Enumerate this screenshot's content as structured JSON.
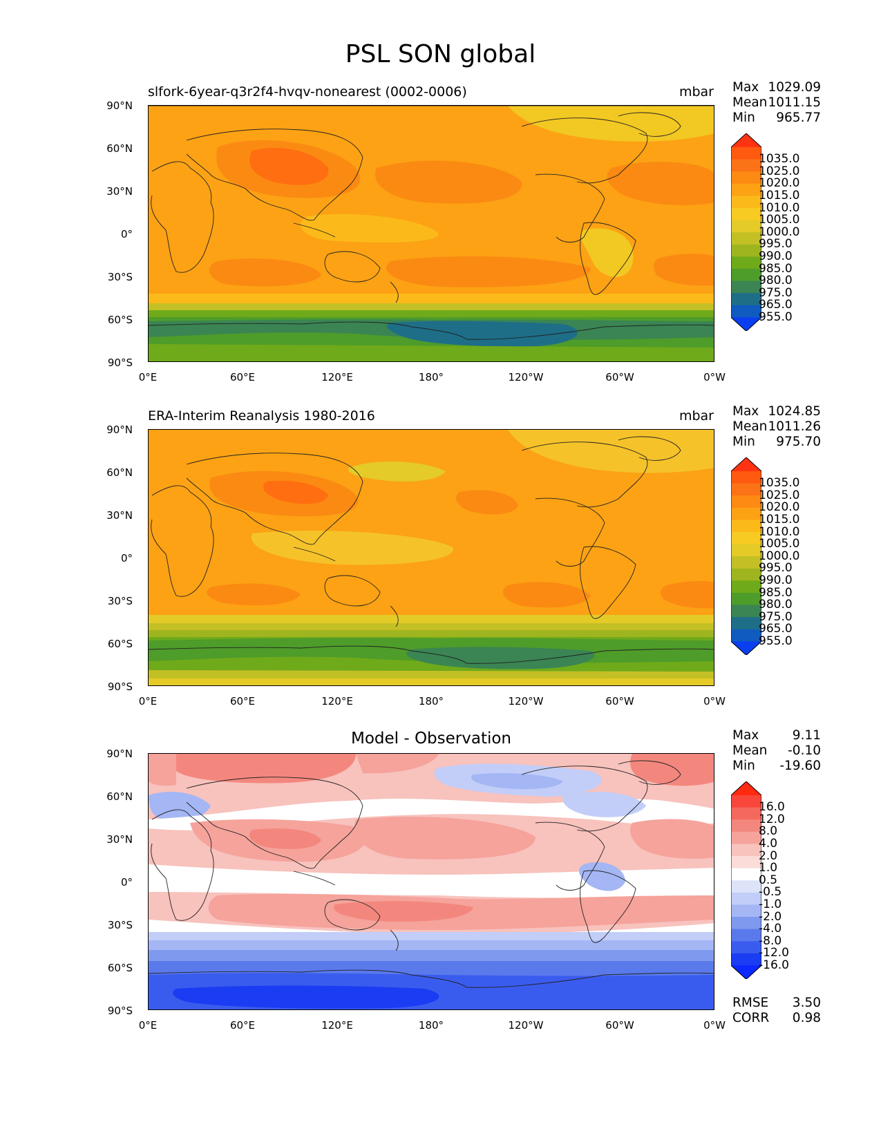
{
  "figure": {
    "title": "PSL SON global"
  },
  "axes": {
    "lat_ticks": [
      "90°N",
      "60°N",
      "30°N",
      "0°",
      "30°S",
      "60°S",
      "90°S"
    ],
    "lon_ticks": [
      "0°E",
      "60°E",
      "120°E",
      "180°",
      "120°W",
      "60°W",
      "0°W"
    ]
  },
  "panels": [
    {
      "id": "model",
      "title_left": "slfork-6year-q3r2f4-hvqv-nonearest (0002-0006)",
      "title_right": "mbar",
      "stats": [
        {
          "label": "Max",
          "value": "1029.09"
        },
        {
          "label": "Mean",
          "value": "1011.15"
        },
        {
          "label": "Min",
          "value": "965.77"
        }
      ]
    },
    {
      "id": "obs",
      "title_left": "ERA-Interim Reanalysis 1980-2016",
      "title_right": "mbar",
      "stats": [
        {
          "label": "Max",
          "value": "1024.85"
        },
        {
          "label": "Mean",
          "value": "1011.26"
        },
        {
          "label": "Min",
          "value": "975.70"
        }
      ]
    },
    {
      "id": "diff",
      "title_center": "Model - Observation",
      "stats": [
        {
          "label": "Max",
          "value": "9.11"
        },
        {
          "label": "Mean",
          "value": "-0.10"
        },
        {
          "label": "Min",
          "value": "-19.60"
        }
      ],
      "metrics": [
        {
          "label": "RMSE",
          "value": "3.50"
        },
        {
          "label": "CORR",
          "value": "0.98"
        }
      ]
    }
  ],
  "colorbars": {
    "psl": {
      "labels": [
        "1035.0",
        "1025.0",
        "1020.0",
        "1015.0",
        "1010.0",
        "1005.0",
        "1000.0",
        "995.0",
        "990.0",
        "985.0",
        "980.0",
        "975.0",
        "965.0",
        "955.0"
      ],
      "colors": [
        "#ff3311",
        "#ff5a10",
        "#fb7316",
        "#fd8a12",
        "#fca214",
        "#fbba1a",
        "#f7cb22",
        "#e4cb28",
        "#c3c025",
        "#9fb51f",
        "#6faa1b",
        "#4e9c2a",
        "#3a8553",
        "#1e6e88",
        "#0f5bbf",
        "#0a3fef"
      ]
    },
    "diff": {
      "labels": [
        "16.0",
        "12.0",
        "8.0",
        "4.0",
        "2.0",
        "1.0",
        "0.5",
        "-0.5",
        "-1.0",
        "-2.0",
        "-4.0",
        "-8.0",
        "-12.0",
        "-16.0"
      ],
      "colors": [
        "#ff2a10",
        "#f8463a",
        "#f5685e",
        "#f3877e",
        "#f5a39b",
        "#f8c2bd",
        "#fbdcd8",
        "#ffffff",
        "#dde4fa",
        "#c2cef8",
        "#a4b6f4",
        "#7f99ee",
        "#5a7aec",
        "#3a5cee",
        "#1a3cf2",
        "#0a28ff"
      ]
    }
  },
  "map_colors": {
    "psl_model": [
      "#f2c823",
      "#fca214",
      "#fb8a12",
      "#ff6e10",
      "#fbba1a",
      "#c3c025",
      "#6faa1b",
      "#4e9c2a",
      "#3a8553",
      "#1e6e88"
    ],
    "psl_obs": [
      "#f5c22a",
      "#fca214",
      "#fb8a12",
      "#ff6e10",
      "#e4cb28",
      "#c3c025",
      "#9fb51f",
      "#6faa1b",
      "#4e9c2a",
      "#3a8553"
    ],
    "diff": [
      "#ffffff",
      "#f8c2bd",
      "#f5a39b",
      "#f3877e",
      "#c2cef8",
      "#a4b6f4",
      "#7f99ee",
      "#5a7aec",
      "#3a5cee",
      "#1a3cf2"
    ],
    "coast": "#222222"
  }
}
